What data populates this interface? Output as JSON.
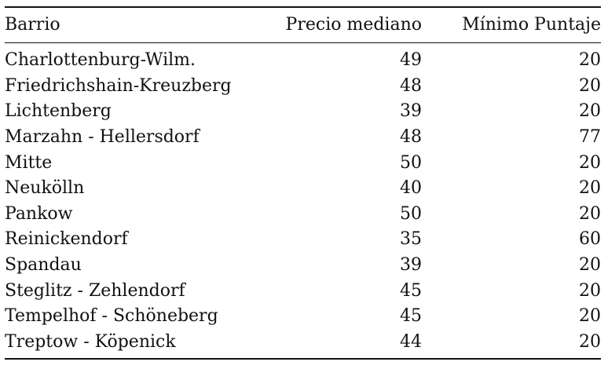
{
  "table": {
    "headers": {
      "barrio": "Barrio",
      "precio": "Precio mediano",
      "minimo": "Mínimo Puntaje"
    },
    "rows": [
      {
        "barrio": "Charlottenburg-Wilm.",
        "precio": "49",
        "minimo": "20"
      },
      {
        "barrio": "Friedrichshain-Kreuzberg",
        "precio": "48",
        "minimo": "20"
      },
      {
        "barrio": "Lichtenberg",
        "precio": "39",
        "minimo": "20"
      },
      {
        "barrio": "Marzahn - Hellersdorf",
        "precio": "48",
        "minimo": "77"
      },
      {
        "barrio": "Mitte",
        "precio": "50",
        "minimo": "20"
      },
      {
        "barrio": "Neukölln",
        "precio": "40",
        "minimo": "20"
      },
      {
        "barrio": "Pankow",
        "precio": "50",
        "minimo": "20"
      },
      {
        "barrio": "Reinickendorf",
        "precio": "35",
        "minimo": "60"
      },
      {
        "barrio": "Spandau",
        "precio": "39",
        "minimo": "20"
      },
      {
        "barrio": "Steglitz - Zehlendorf",
        "precio": "45",
        "minimo": "20"
      },
      {
        "barrio": "Tempelhof - Schöneberg",
        "precio": "45",
        "minimo": "20"
      },
      {
        "barrio": "Treptow - Köpenick",
        "precio": "44",
        "minimo": "20"
      }
    ]
  }
}
